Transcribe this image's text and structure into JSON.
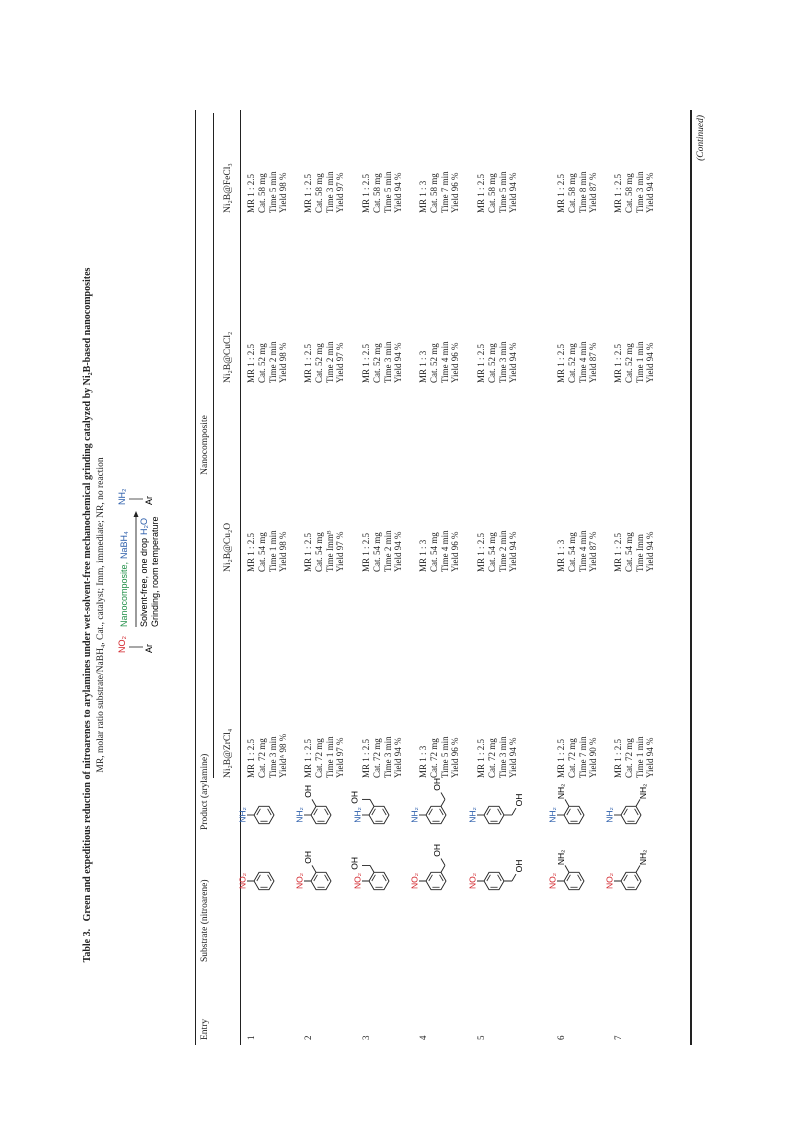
{
  "caption": {
    "label": "Table 3.",
    "title": "Green and expeditious reduction of nitroarenes to arylamines under wet-solvent-free mechanochemical grinding catalyzed by Ni₂B-based nanocomposites",
    "subtitle": "MR, molar ratio substrate/NaBH₄, Cat., catalyst; Imm, immediate; NR, no reaction"
  },
  "scheme": {
    "reactant_group": "NO₂",
    "reactant_r": "Ar",
    "reagent_a": "Nanocomposite,",
    "reagent_b": "NaBH₄",
    "condition_a": "Solvent-free, one drop",
    "condition_b": "H₂O",
    "condition_c": "Grinding, room temperature",
    "product_group": "NH₂",
    "product_r": "Ar"
  },
  "table": {
    "headers": [
      "Entry",
      "Substrate (nitroarene)",
      "Product (arylamine)"
    ],
    "group_header": "Nanocomposite",
    "sub_headers": [
      "Ni₂B@ZrCl₄",
      "Ni₂B@Cu₂O",
      "Ni₂B@CuCl₂",
      "Ni₂B@FeCl₃"
    ],
    "rows": [
      {
        "entry": 1,
        "substrate": [
          "NO₂"
        ],
        "product": [
          "NH₂"
        ],
        "cells": [
          [
            "MR 1 : 2.5",
            "Cat. 72 mg",
            "Time 3 min",
            "Yieldᴬ 98 %"
          ],
          [
            "MR 1 : 2.5",
            "Cat. 54 mg",
            "Time 1 min",
            "Yield 98 %"
          ],
          [
            "MR 1 : 2.5",
            "Cat. 52 mg",
            "Time 2 min",
            "Yield 98 %"
          ],
          [
            "MR 1 : 2.5",
            "Cat. 58 mg",
            "Time 5 min",
            "Yield 98 %"
          ]
        ]
      },
      {
        "entry": 2,
        "substrate": [
          "NO₂",
          "OH"
        ],
        "product": [
          "NH₂",
          "OH"
        ],
        "cells": [
          [
            "MR 1 : 2.5",
            "Cat. 72 mg",
            "Time 1 min",
            "Yield 97 %"
          ],
          [
            "MR 1 : 2.5",
            "Cat. 54 mg",
            "Time Immᴮ",
            "Yield 97 %"
          ],
          [
            "MR 1 : 2.5",
            "Cat. 52 mg",
            "Time 2 min",
            "Yield 97 %"
          ],
          [
            "MR 1 : 2.5",
            "Cat. 58 mg",
            "Time 3 min",
            "Yield 97 %"
          ]
        ]
      },
      {
        "entry": 3,
        "substrate": [
          "NO₂",
          "OH"
        ],
        "product": [
          "NH₂",
          "OH"
        ],
        "cells": [
          [
            "MR 1 : 2.5",
            "Cat. 72 mg",
            "Time 3 min",
            "Yield 94 %"
          ],
          [
            "MR 1 : 2.5",
            "Cat. 54 mg",
            "Time 2 min",
            "Yield 94 %"
          ],
          [
            "MR 1 : 2.5",
            "Cat. 52 mg",
            "Time 3 min",
            "Yield 94 %"
          ],
          [
            "MR 1 : 2.5",
            "Cat. 58 mg",
            "Time 5 min",
            "Yield 94 %"
          ]
        ]
      },
      {
        "entry": 4,
        "substrate": [
          "NO₂",
          "OH"
        ],
        "product": [
          "NH₂",
          "OH"
        ],
        "cells": [
          [
            "MR 1 : 3",
            "Cat. 72 mg",
            "Time 5 min",
            "Yield 96 %"
          ],
          [
            "MR 1 : 3",
            "Cat. 54 mg",
            "Time 4 min",
            "Yield 96 %"
          ],
          [
            "MR 1 : 3",
            "Cat. 52 mg",
            "Time 4 min",
            "Yield 96 %"
          ],
          [
            "MR 1 : 3",
            "Cat. 58 mg",
            "Time 7 min",
            "Yield 96 %"
          ]
        ]
      },
      {
        "entry": 5,
        "substrate": [
          "NO₂",
          "OH"
        ],
        "product": [
          "NH₂",
          "OH"
        ],
        "cells": [
          [
            "MR 1 : 2.5",
            "Cat. 72 mg",
            "Time 3 min",
            "Yield 94 %"
          ],
          [
            "MR 1 : 2.5",
            "Cat. 54 mg",
            "Time 2 min",
            "Yield 94 %"
          ],
          [
            "MR 1 : 2.5",
            "Cat. 52 mg",
            "Time 3 min",
            "Yield 94 %"
          ],
          [
            "MR 1 : 2.5",
            "Cat. 58 mg",
            "Time 5 min",
            "Yield 94 %"
          ]
        ]
      },
      {
        "entry": 6,
        "substrate": [
          "NO₂",
          "NH₂"
        ],
        "product": [
          "NH₂",
          "NH₂"
        ],
        "cells": [
          [
            "MR 1 : 2.5",
            "Cat. 72 mg",
            "Time 7 min",
            "Yield 90 %"
          ],
          [
            "MR 1 : 3",
            "Cat. 54 mg",
            "Time 4 min",
            "Yield 87 %"
          ],
          [
            "MR 1 : 2.5",
            "Cat. 52 mg",
            "Time 4 min",
            "Yield 87 %"
          ],
          [
            "MR 1 : 2.5",
            "Cat. 58 mg",
            "Time 8 min",
            "Yield 87 %"
          ]
        ]
      },
      {
        "entry": 7,
        "substrate": [
          "NO₂",
          "NH₂"
        ],
        "product": [
          "NH₂",
          "NH₂"
        ],
        "cells": [
          [
            "MR 1 : 2.5",
            "Cat. 72 mg",
            "Time 1 min",
            "Yield 94 %"
          ],
          [
            "MR 1 : 2.5",
            "Cat. 54 mg",
            "Time Imm",
            "Yield 94 %"
          ],
          [
            "MR 1 : 2.5",
            "Cat. 52 mg",
            "Time 1 min",
            "Yield 94 %"
          ],
          [
            "MR 1 : 2.5",
            "Cat. 58 mg",
            "Time 3 min",
            "Yield 94 %"
          ]
        ]
      }
    ]
  },
  "footer": "(Continued)"
}
